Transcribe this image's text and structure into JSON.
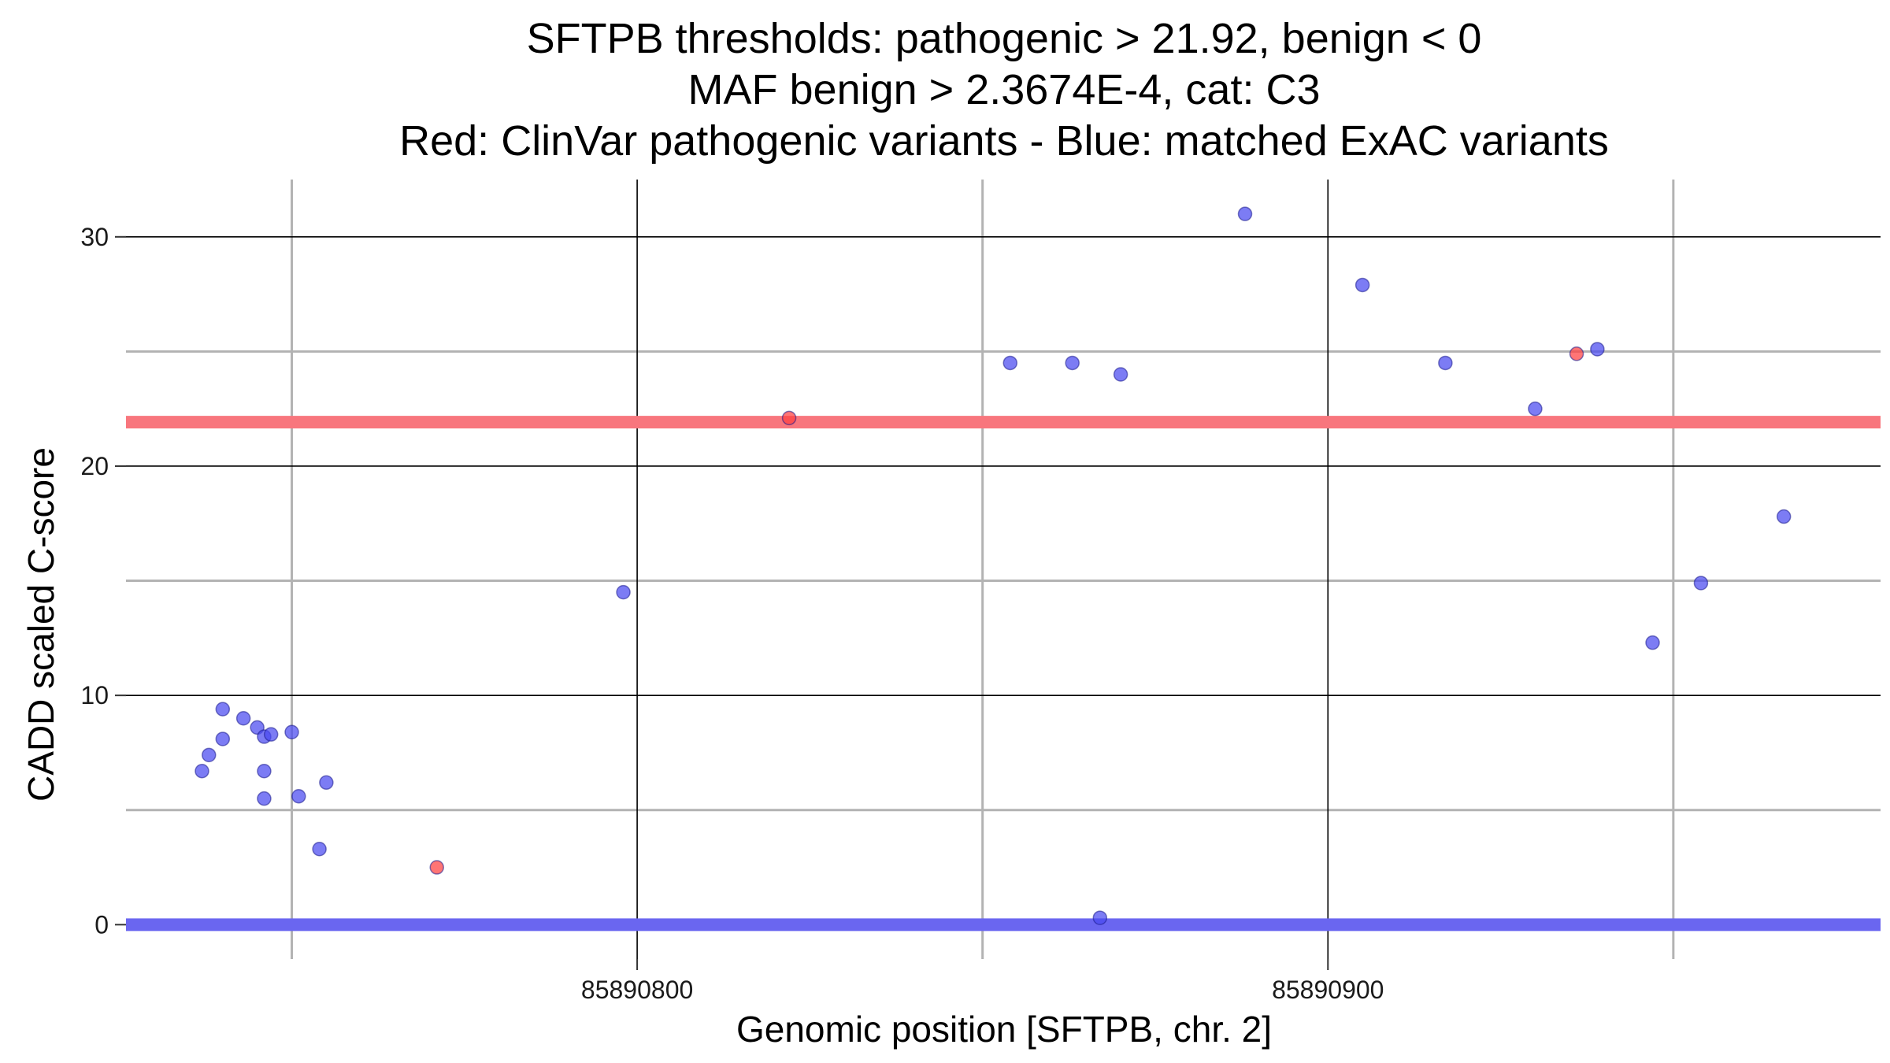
{
  "chart_data": {
    "type": "scatter",
    "title_lines": [
      "SFTPB thresholds: pathogenic > 21.92, benign < 0",
      "MAF benign > 2.3674E-4, cat: C3",
      "Red: ClinVar pathogenic variants - Blue: matched ExAC variants"
    ],
    "xlabel": "Genomic position [SFTPB, chr. 2]",
    "ylabel": "CADD scaled C-score",
    "xlim": [
      85890726,
      85890980
    ],
    "ylim": [
      -1.5,
      32.5
    ],
    "x_major_ticks": [
      85890800,
      85890900
    ],
    "x_minor_ticks": [
      85890750,
      85890850,
      85890950
    ],
    "x_tick_labels": [
      "85890800",
      "85890900"
    ],
    "y_major_ticks": [
      0,
      10,
      20,
      30
    ],
    "y_minor_ticks": [
      5,
      15,
      25
    ],
    "y_tick_labels": [
      "0",
      "10",
      "20",
      "30"
    ],
    "thresholds": [
      {
        "name": "pathogenic",
        "value": 21.92,
        "color": "#f8767d"
      },
      {
        "name": "benign",
        "value": 0,
        "color": "#6a66f0"
      }
    ],
    "colors": {
      "pathogenic_point": "#ff4040",
      "benign_point": "#4a4af0",
      "point_stroke": "#1a1a8c",
      "major_grid": "#000000",
      "minor_grid": "#b3b3b3"
    },
    "series": [
      {
        "name": "ClinVar pathogenic variants",
        "color": "#ff4040",
        "points": [
          {
            "x": 85890771,
            "y": 2.5
          },
          {
            "x": 85890822,
            "y": 22.1
          },
          {
            "x": 85890936,
            "y": 24.9
          }
        ]
      },
      {
        "name": "matched ExAC variants",
        "color": "#4a4af0",
        "points": [
          {
            "x": 85890737,
            "y": 6.7
          },
          {
            "x": 85890738,
            "y": 7.4
          },
          {
            "x": 85890740,
            "y": 9.4
          },
          {
            "x": 85890740,
            "y": 8.1
          },
          {
            "x": 85890743,
            "y": 9.0
          },
          {
            "x": 85890745,
            "y": 8.6
          },
          {
            "x": 85890746,
            "y": 8.2
          },
          {
            "x": 85890746,
            "y": 6.7
          },
          {
            "x": 85890746,
            "y": 5.5
          },
          {
            "x": 85890747,
            "y": 8.3
          },
          {
            "x": 85890750,
            "y": 8.4
          },
          {
            "x": 85890751,
            "y": 5.6
          },
          {
            "x": 85890755,
            "y": 6.2
          },
          {
            "x": 85890754,
            "y": 3.3
          },
          {
            "x": 85890798,
            "y": 14.5
          },
          {
            "x": 85890854,
            "y": 24.5
          },
          {
            "x": 85890863,
            "y": 24.5
          },
          {
            "x": 85890870,
            "y": 24.0
          },
          {
            "x": 85890867,
            "y": 0.3
          },
          {
            "x": 85890888,
            "y": 31.0
          },
          {
            "x": 85890905,
            "y": 27.9
          },
          {
            "x": 85890917,
            "y": 24.5
          },
          {
            "x": 85890930,
            "y": 22.5
          },
          {
            "x": 85890939,
            "y": 25.1
          },
          {
            "x": 85890947,
            "y": 12.3
          },
          {
            "x": 85890954,
            "y": 14.9
          },
          {
            "x": 85890966,
            "y": 17.8
          }
        ]
      }
    ]
  }
}
